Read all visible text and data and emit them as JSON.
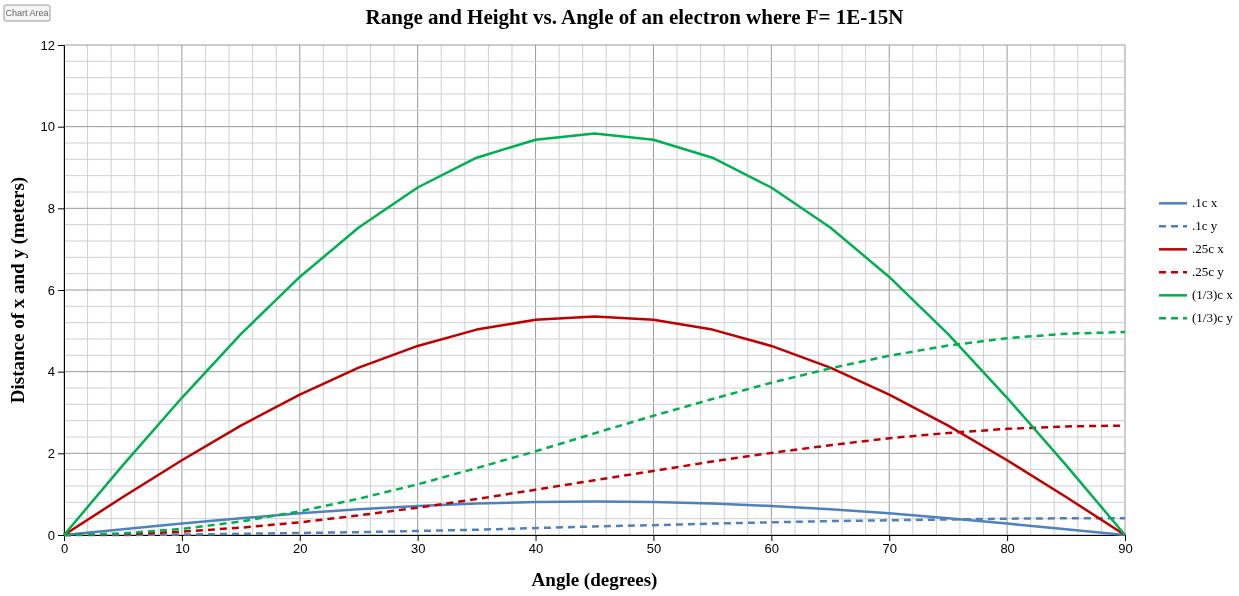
{
  "chart_data": {
    "type": "line",
    "title": "Range and Height vs. Angle of an electron where F= 1E-15N",
    "xlabel": "Angle (degrees)",
    "ylabel": "Distance of x and y (meters)",
    "annotations": [
      "Chart Area"
    ],
    "x": [
      0,
      5,
      10,
      15,
      20,
      25,
      30,
      35,
      40,
      45,
      50,
      55,
      60,
      65,
      70,
      75,
      80,
      85,
      90
    ],
    "xlim": [
      0,
      90
    ],
    "xticks": [
      0,
      10,
      20,
      30,
      40,
      50,
      60,
      70,
      80,
      90
    ],
    "ylim": [
      0,
      12
    ],
    "yticks": [
      0,
      2,
      4,
      6,
      8,
      10,
      12
    ],
    "grid": true,
    "legend": "right",
    "marker": "none",
    "series": [
      {
        "name": ".1c x",
        "color": "#4f81bd",
        "line_style": "solid",
        "values": [
          0,
          0.14,
          0.28,
          0.41,
          0.53,
          0.63,
          0.71,
          0.77,
          0.81,
          0.82,
          0.81,
          0.77,
          0.71,
          0.63,
          0.53,
          0.41,
          0.28,
          0.14,
          0
        ]
      },
      {
        "name": ".1c y",
        "color": "#4f81bd",
        "line_style": "dashed",
        "values": [
          0,
          0.0,
          0.01,
          0.03,
          0.05,
          0.07,
          0.1,
          0.13,
          0.17,
          0.21,
          0.24,
          0.28,
          0.31,
          0.34,
          0.36,
          0.38,
          0.4,
          0.41,
          0.41
        ]
      },
      {
        "name": ".25c x",
        "color": "#c00000",
        "line_style": "solid",
        "values": [
          0,
          0.93,
          1.83,
          2.68,
          3.44,
          4.1,
          4.63,
          5.03,
          5.27,
          5.35,
          5.27,
          5.03,
          4.63,
          4.1,
          3.44,
          2.68,
          1.83,
          0.93,
          0
        ]
      },
      {
        "name": ".25c y",
        "color": "#c00000",
        "line_style": "dashed",
        "values": [
          0,
          0.02,
          0.08,
          0.18,
          0.31,
          0.48,
          0.67,
          0.88,
          1.11,
          1.34,
          1.57,
          1.8,
          2.01,
          2.2,
          2.37,
          2.5,
          2.6,
          2.66,
          2.68
        ]
      },
      {
        "name": "(1/3)c x",
        "color": "#00b050",
        "line_style": "solid",
        "values": [
          0,
          1.71,
          3.36,
          4.92,
          6.32,
          7.53,
          8.51,
          9.24,
          9.68,
          9.83,
          9.68,
          9.24,
          8.51,
          7.53,
          6.32,
          4.92,
          3.36,
          1.71,
          0
        ]
      },
      {
        "name": "(1/3)c y",
        "color": "#00b050",
        "line_style": "dashed",
        "values": [
          0,
          0.04,
          0.15,
          0.33,
          0.58,
          0.89,
          1.24,
          1.64,
          2.05,
          2.49,
          2.92,
          3.33,
          3.73,
          4.08,
          4.39,
          4.64,
          4.82,
          4.93,
          4.97
        ]
      }
    ]
  }
}
